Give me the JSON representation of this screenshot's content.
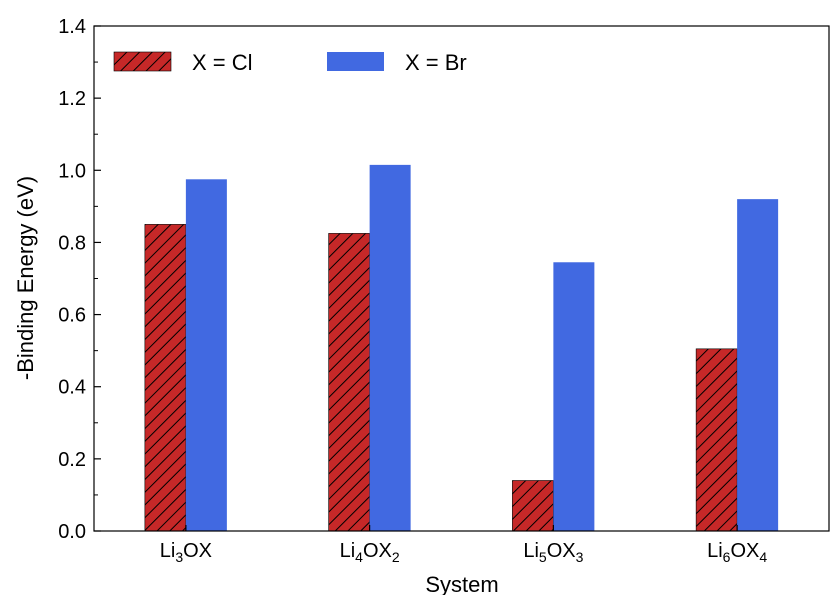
{
  "chart_data": {
    "type": "bar",
    "categories": [
      {
        "base": "Li",
        "sub1": "3",
        "mid": "OX",
        "sub2": ""
      },
      {
        "base": "Li",
        "sub1": "4",
        "mid": "OX",
        "sub2": "2"
      },
      {
        "base": "Li",
        "sub1": "5",
        "mid": "OX",
        "sub2": "3"
      },
      {
        "base": "Li",
        "sub1": "6",
        "mid": "OX",
        "sub2": "4"
      }
    ],
    "series": [
      {
        "name": "X = Cl",
        "values": [
          0.85,
          0.825,
          0.14,
          0.505
        ],
        "color": "#c62828",
        "pattern": "hatch"
      },
      {
        "name": "X = Br",
        "values": [
          0.975,
          1.015,
          0.745,
          0.92
        ],
        "color": "#4169e1",
        "pattern": "solid"
      }
    ],
    "xlabel": "System",
    "ylabel": "-Binding Energy (eV)",
    "ylim": [
      0,
      1.4
    ],
    "yticks": [
      "0.0",
      "0.2",
      "0.4",
      "0.6",
      "0.8",
      "1.0",
      "1.2",
      "1.4"
    ],
    "ytick_values": [
      0.0,
      0.2,
      0.4,
      0.6,
      0.8,
      1.0,
      1.2,
      1.4
    ],
    "legend_position": "top-left",
    "grid": false
  }
}
